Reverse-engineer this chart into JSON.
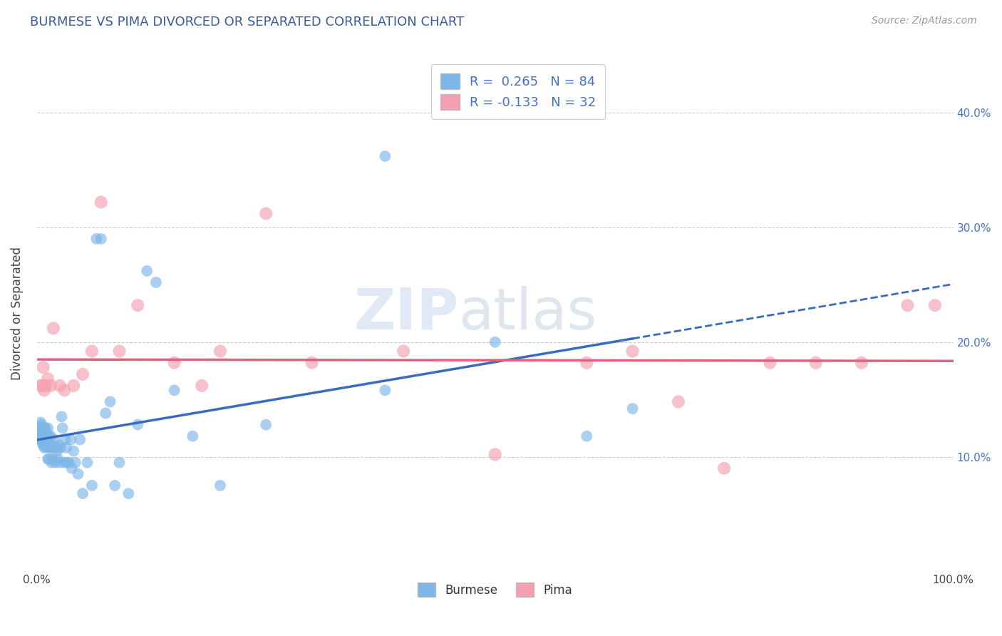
{
  "title": "BURMESE VS PIMA DIVORCED OR SEPARATED CORRELATION CHART",
  "source_text": "Source: ZipAtlas.com",
  "ylabel": "Divorced or Separated",
  "xlim": [
    0.0,
    1.0
  ],
  "ylim": [
    0.0,
    0.45
  ],
  "y_ticks": [
    0.1,
    0.2,
    0.3,
    0.4
  ],
  "burmese_color": "#7EB6E8",
  "pima_color": "#F4A0B0",
  "burmese_line_color": "#3A6BBF",
  "pima_line_color": "#E06080",
  "background_color": "#FFFFFF",
  "grid_color": "#CCCCCC",
  "title_color": "#3A5BA0",
  "watermark_zip": "ZIP",
  "watermark_atlas": "atlas",
  "burmese_x": [
    0.002,
    0.003,
    0.003,
    0.004,
    0.004,
    0.005,
    0.005,
    0.005,
    0.006,
    0.006,
    0.006,
    0.007,
    0.007,
    0.007,
    0.007,
    0.008,
    0.008,
    0.008,
    0.008,
    0.009,
    0.009,
    0.009,
    0.01,
    0.01,
    0.01,
    0.01,
    0.011,
    0.011,
    0.011,
    0.012,
    0.012,
    0.012,
    0.013,
    0.013,
    0.014,
    0.015,
    0.015,
    0.016,
    0.016,
    0.017,
    0.018,
    0.019,
    0.02,
    0.021,
    0.022,
    0.023,
    0.024,
    0.025,
    0.026,
    0.027,
    0.028,
    0.03,
    0.031,
    0.032,
    0.033,
    0.035,
    0.037,
    0.038,
    0.04,
    0.042,
    0.045,
    0.047,
    0.05,
    0.055,
    0.06,
    0.065,
    0.07,
    0.075,
    0.08,
    0.085,
    0.09,
    0.1,
    0.11,
    0.12,
    0.13,
    0.15,
    0.17,
    0.2,
    0.25,
    0.38,
    0.5,
    0.6,
    0.65,
    0.38
  ],
  "burmese_y": [
    0.12,
    0.125,
    0.115,
    0.13,
    0.118,
    0.125,
    0.115,
    0.128,
    0.122,
    0.118,
    0.112,
    0.11,
    0.125,
    0.118,
    0.112,
    0.115,
    0.125,
    0.108,
    0.118,
    0.12,
    0.11,
    0.125,
    0.118,
    0.11,
    0.115,
    0.122,
    0.118,
    0.108,
    0.115,
    0.125,
    0.098,
    0.115,
    0.118,
    0.098,
    0.108,
    0.118,
    0.108,
    0.095,
    0.11,
    0.098,
    0.108,
    0.115,
    0.095,
    0.108,
    0.105,
    0.098,
    0.11,
    0.095,
    0.108,
    0.135,
    0.125,
    0.095,
    0.115,
    0.108,
    0.095,
    0.095,
    0.115,
    0.09,
    0.105,
    0.095,
    0.085,
    0.115,
    0.068,
    0.095,
    0.075,
    0.29,
    0.29,
    0.138,
    0.148,
    0.075,
    0.095,
    0.068,
    0.128,
    0.262,
    0.252,
    0.158,
    0.118,
    0.075,
    0.128,
    0.362,
    0.2,
    0.118,
    0.142,
    0.158
  ],
  "pima_x": [
    0.004,
    0.006,
    0.007,
    0.008,
    0.01,
    0.012,
    0.015,
    0.018,
    0.025,
    0.03,
    0.04,
    0.05,
    0.06,
    0.07,
    0.09,
    0.11,
    0.15,
    0.18,
    0.2,
    0.25,
    0.3,
    0.4,
    0.5,
    0.6,
    0.65,
    0.7,
    0.75,
    0.8,
    0.85,
    0.9,
    0.95,
    0.98
  ],
  "pima_y": [
    0.162,
    0.162,
    0.178,
    0.158,
    0.162,
    0.168,
    0.162,
    0.212,
    0.162,
    0.158,
    0.162,
    0.172,
    0.192,
    0.322,
    0.192,
    0.232,
    0.182,
    0.162,
    0.192,
    0.312,
    0.182,
    0.192,
    0.102,
    0.182,
    0.192,
    0.148,
    0.09,
    0.182,
    0.182,
    0.182,
    0.232,
    0.232
  ]
}
